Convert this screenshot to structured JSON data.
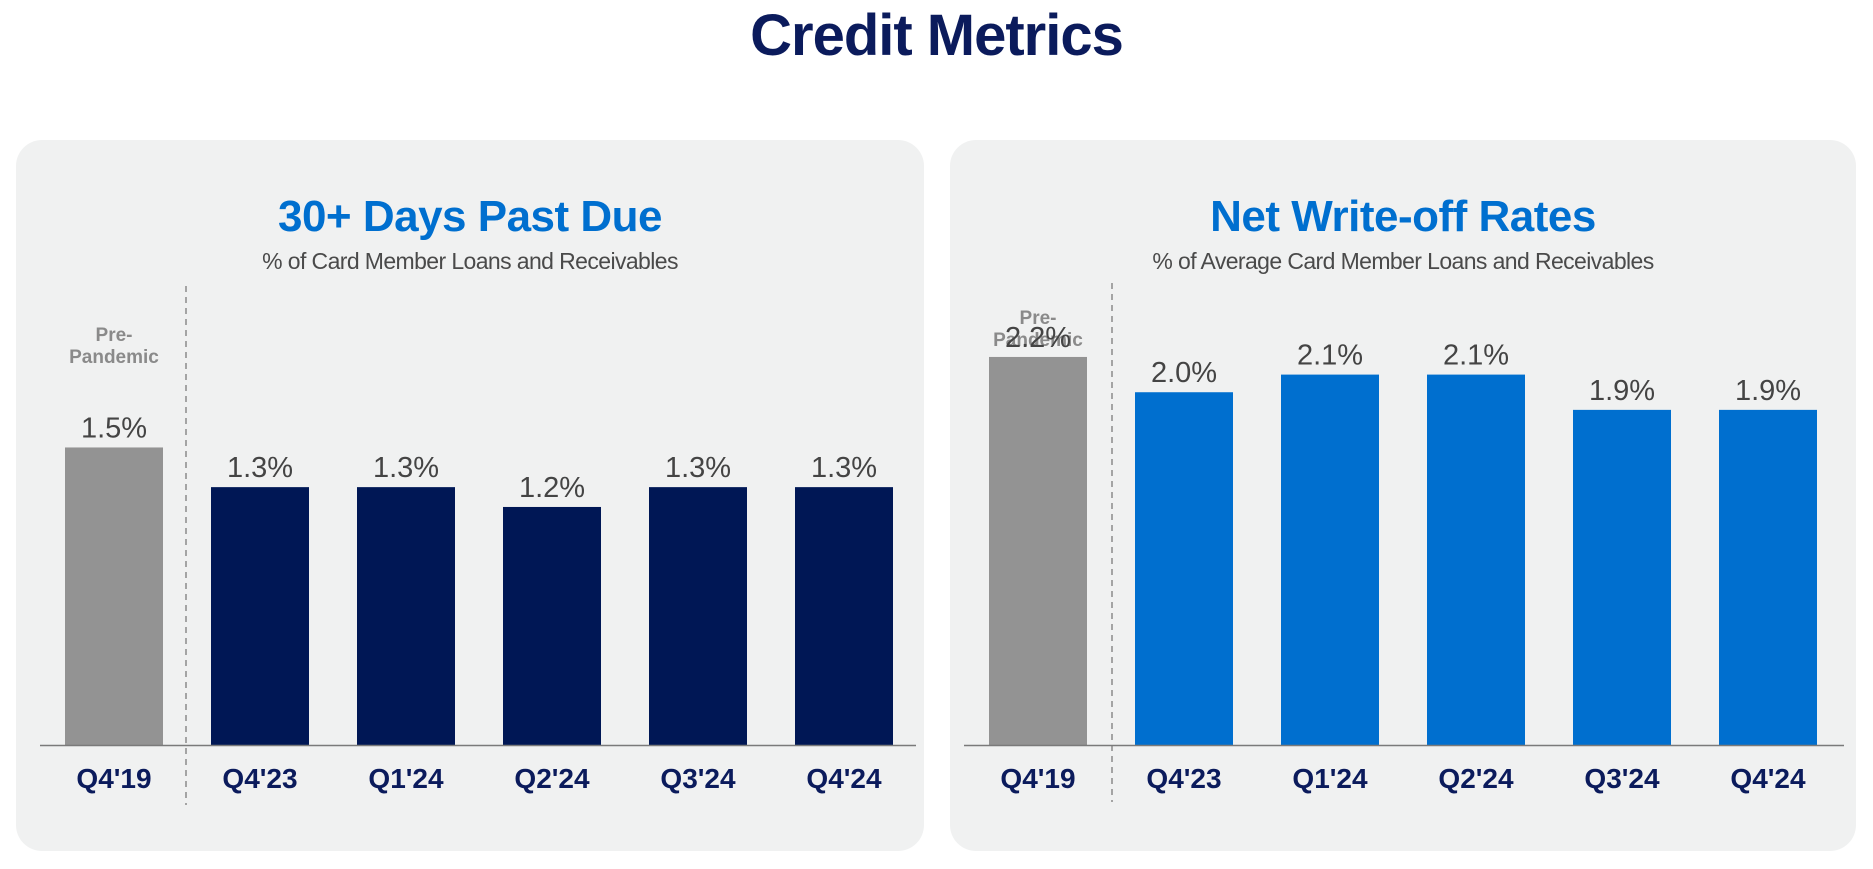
{
  "page_title": "Credit Metrics",
  "colors": {
    "title": "#0b1b5c",
    "panel_title": "#006fcf",
    "pre_pandemic_bar": "#939393",
    "dpd_bar": "#001755",
    "writeoff_bar": "#006fcf",
    "category_label": "#0b1b5c"
  },
  "chart_data": [
    {
      "type": "bar",
      "title": "30+ Days Past Due",
      "subtitle": "% of Card Member Loans and Receivables",
      "annotation": [
        "Pre-",
        "Pandemic"
      ],
      "categories": [
        "Q4'19",
        "Q4'23",
        "Q1'24",
        "Q2'24",
        "Q3'24",
        "Q4'24"
      ],
      "values": [
        1.5,
        1.3,
        1.3,
        1.2,
        1.3,
        1.3
      ],
      "data_labels": [
        "1.5%",
        "1.3%",
        "1.3%",
        "1.2%",
        "1.3%",
        "1.3%"
      ],
      "ylim": [
        0,
        3.05
      ],
      "xlabel": "",
      "ylabel": "",
      "grid": false,
      "legend": "none"
    },
    {
      "type": "bar",
      "title": "Net Write-off Rates",
      "subtitle": "% of Average Card Member Loans and Receivables",
      "annotation": [
        "Pre-",
        "Pandemic"
      ],
      "categories": [
        "Q4'19",
        "Q4'23",
        "Q1'24",
        "Q2'24",
        "Q3'24",
        "Q4'24"
      ],
      "values": [
        2.2,
        2.0,
        2.1,
        2.1,
        1.9,
        1.9
      ],
      "data_labels": [
        "2.2%",
        "2.0%",
        "2.1%",
        "2.1%",
        "1.9%",
        "1.9%"
      ],
      "ylim": [
        0,
        3.43
      ],
      "xlabel": "",
      "ylabel": "",
      "grid": false,
      "legend": "none"
    }
  ]
}
